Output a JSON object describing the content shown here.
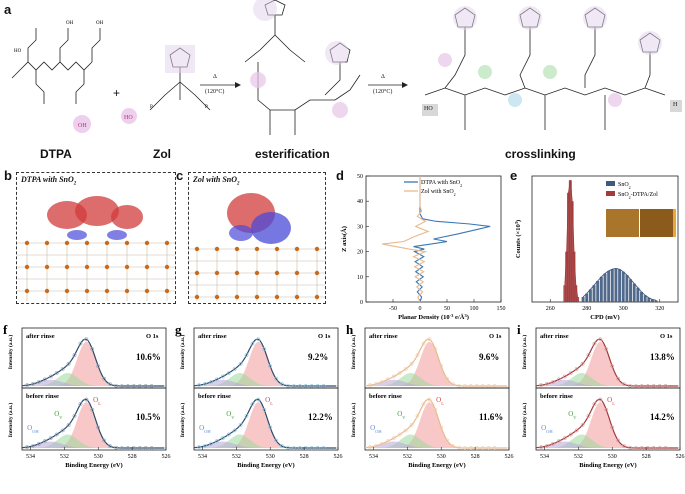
{
  "panel_a": {
    "letter": "a",
    "labels": {
      "dtpa": "DTPA",
      "zol": "Zol",
      "plus": "+",
      "esterification": "esterification",
      "crosslinking": "crosslinking"
    },
    "arrows": [
      {
        "top": "Δ",
        "bottom": "(120°C)"
      },
      {
        "top": "Δ",
        "bottom": "(120°C)"
      }
    ],
    "endgroups": {
      "left": "HO",
      "right": "H"
    }
  },
  "panel_b": {
    "letter": "b",
    "title": "DTPA with SnO",
    "sub": "2"
  },
  "panel_c": {
    "letter": "c",
    "title": "Zol with SnO",
    "sub": "2"
  },
  "panel_d": {
    "letter": "d",
    "chart_data": {
      "type": "line",
      "xlabel": "Planar Density (10",
      "xlabel_sup": "-3",
      "xlabel_tail": " e/Å",
      "xlabel_sup2": "3",
      "xlabel_end": ")",
      "ylabel": "Z axis(Å)",
      "xlim": [
        -100,
        150
      ],
      "ylim": [
        0,
        50
      ],
      "xticks": [
        "-50",
        "0",
        "50",
        "100",
        "150"
      ],
      "xtick_vals": [
        -50,
        0,
        50,
        100,
        150
      ],
      "yticks": [
        "0",
        "10",
        "20",
        "30",
        "40",
        "50"
      ],
      "ytick_vals": [
        0,
        10,
        20,
        30,
        40,
        50
      ],
      "series": [
        {
          "name": "DTPA with SnO",
          "name_sub": "2",
          "color": "#3b78b5",
          "points": [
            [
              0,
              0
            ],
            [
              3,
              2
            ],
            [
              -5,
              4
            ],
            [
              4,
              6
            ],
            [
              -7,
              8
            ],
            [
              6,
              10
            ],
            [
              -8,
              12
            ],
            [
              5,
              14
            ],
            [
              -9,
              16
            ],
            [
              7,
              18
            ],
            [
              -10,
              20
            ],
            [
              8,
              21
            ],
            [
              -12,
              22
            ],
            [
              20,
              23
            ],
            [
              50,
              24
            ],
            [
              25,
              25
            ],
            [
              70,
              27
            ],
            [
              110,
              29
            ],
            [
              130,
              30
            ],
            [
              90,
              31
            ],
            [
              30,
              32
            ],
            [
              5,
              33
            ],
            [
              0,
              35
            ],
            [
              0,
              40
            ],
            [
              0,
              45
            ],
            [
              0,
              50
            ]
          ]
        },
        {
          "name": "Zol with SnO",
          "name_sub": "2",
          "color": "#e8b98d",
          "points": [
            [
              0,
              0
            ],
            [
              -4,
              2
            ],
            [
              5,
              4
            ],
            [
              -6,
              6
            ],
            [
              6,
              8
            ],
            [
              -9,
              10
            ],
            [
              7,
              12
            ],
            [
              -10,
              14
            ],
            [
              8,
              16
            ],
            [
              -12,
              18
            ],
            [
              10,
              20
            ],
            [
              -20,
              21
            ],
            [
              -45,
              22
            ],
            [
              -70,
              23
            ],
            [
              -30,
              24
            ],
            [
              -10,
              26
            ],
            [
              15,
              28
            ],
            [
              -8,
              30
            ],
            [
              10,
              32
            ],
            [
              -5,
              34
            ],
            [
              3,
              36
            ],
            [
              0,
              38
            ],
            [
              0,
              42
            ],
            [
              0,
              46
            ],
            [
              0,
              50
            ]
          ]
        }
      ]
    }
  },
  "panel_e": {
    "letter": "e",
    "chart_data": {
      "type": "bar",
      "xlabel": "CPD (mV)",
      "ylabel": "Counts (×10",
      "ylabel_sup": "3",
      "ylabel_end": ")",
      "xlim": [
        250,
        330
      ],
      "xticks": [
        "260",
        "280",
        "300",
        "320"
      ],
      "xtick_vals": [
        260,
        280,
        300,
        320
      ],
      "series": [
        {
          "name": "SnO",
          "name_sub": "2",
          "color": "#3e5a7e",
          "x": [
            278,
            280,
            282,
            284,
            286,
            288,
            290,
            292,
            294,
            296,
            298,
            300,
            302,
            304,
            306,
            308,
            310,
            312,
            314,
            316,
            318
          ],
          "values": [
            0.6,
            1.0,
            1.5,
            2.0,
            2.5,
            3.0,
            3.4,
            3.7,
            3.9,
            4.0,
            3.9,
            3.6,
            3.2,
            2.7,
            2.2,
            1.7,
            1.2,
            0.8,
            0.5,
            0.3,
            0.2
          ]
        },
        {
          "name": "SnO",
          "name_sub": "2",
          "name_tail": "-DTPA/Zol",
          "color": "#a23b3b",
          "x": [
            268,
            269,
            270,
            271,
            272,
            273,
            274,
            275
          ],
          "values": [
            2.0,
            6.0,
            13.0,
            14.5,
            12.0,
            6.0,
            2.0,
            0.6
          ]
        }
      ],
      "ylim": [
        0,
        15
      ]
    }
  },
  "xps": {
    "xlabel": "Binding Energy (eV)",
    "ylabel": "Intensity (a.u.)",
    "xticks": [
      "534",
      "532",
      "530",
      "528",
      "526"
    ],
    "tick_vals": [
      534,
      532,
      530,
      528,
      526
    ],
    "xlim": [
      534.5,
      526
    ],
    "panels": [
      {
        "letter": "f",
        "line_color": "#2c4a6e",
        "marker_color": "#9aa6b2",
        "top": {
          "label": "after rinse",
          "element": "O 1s",
          "pct": "10.6%"
        },
        "bottom": {
          "label": "before rinse",
          "pct": "10.5%",
          "ol": "O",
          "ol_sub": "L",
          "ov": "O",
          "ov_sub": "V",
          "ooh": "O",
          "ooh_sub": "OH"
        }
      },
      {
        "letter": "g",
        "line_color": "#2c4a6e",
        "marker_color": "#8fc7df",
        "top": {
          "label": "after rinse",
          "element": "O 1s",
          "pct": "9.2%"
        },
        "bottom": {
          "label": "before rinse",
          "pct": "12.2%",
          "ol": "O",
          "ol_sub": "L",
          "ov": "O",
          "ov_sub": "V",
          "ooh": "O",
          "ooh_sub": "OH"
        }
      },
      {
        "letter": "h",
        "line_color": "#e8b98d",
        "marker_color": "#f0cfae",
        "top": {
          "label": "after rinse",
          "element": "O 1s",
          "pct": "9.6%"
        },
        "bottom": {
          "label": "before rinse",
          "pct": "11.6%",
          "ol": "O",
          "ol_sub": "L",
          "ov": "O",
          "ov_sub": "V",
          "ooh": "O",
          "ooh_sub": "OH"
        }
      },
      {
        "letter": "i",
        "line_color": "#a23b3b",
        "marker_color": "#d8a3a3",
        "top": {
          "label": "after rinse",
          "element": "O 1s",
          "pct": "13.8%"
        },
        "bottom": {
          "label": "before rinse",
          "pct": "14.2%",
          "ol": "O",
          "ol_sub": "L",
          "ov": "O",
          "ov_sub": "V",
          "ooh": "O",
          "ooh_sub": "OH"
        }
      }
    ]
  }
}
